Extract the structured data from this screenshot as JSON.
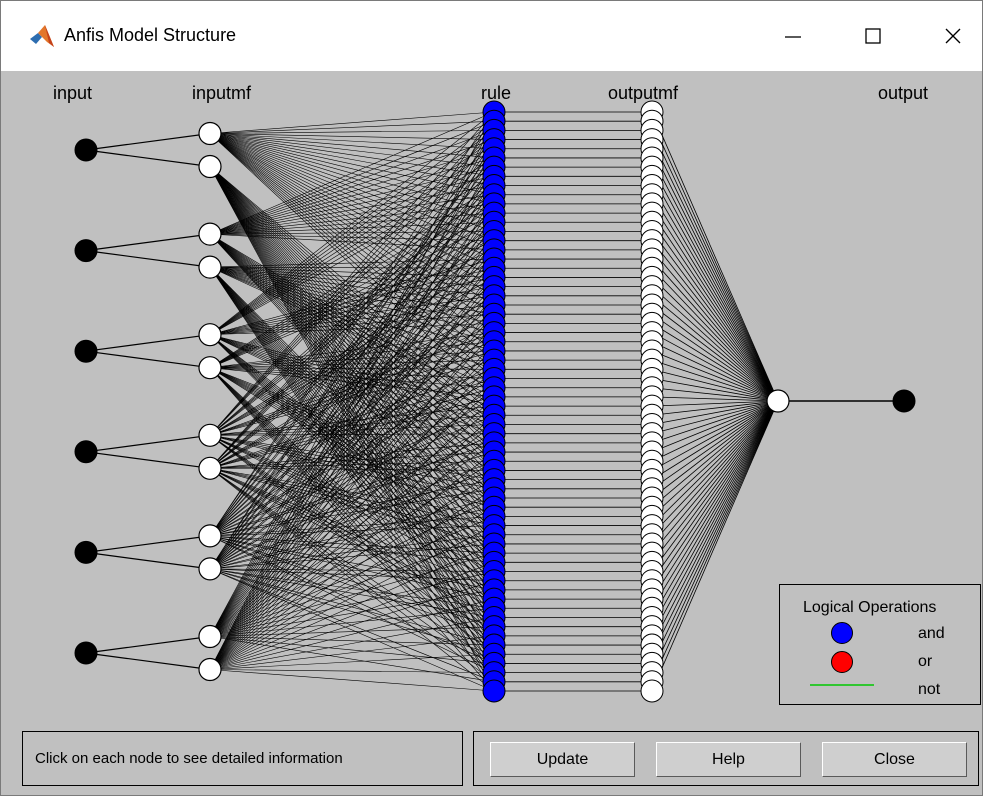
{
  "window": {
    "title": "Anfis Model Structure",
    "icon": "matlab-logo-icon",
    "controls": [
      "minimize-icon",
      "maximize-icon",
      "close-icon"
    ]
  },
  "diagram": {
    "column_labels": {
      "input": "input",
      "inputmf": "inputmf",
      "rule": "rule",
      "outputmf": "outputmf",
      "output": "output"
    },
    "counts": {
      "inputs": 6,
      "mfs_per_input": 2,
      "rules": 64,
      "outputmfs": 64,
      "outputs": 1
    },
    "colors": {
      "input_node": "#000000",
      "inputmf_node": "#ffffff",
      "rule_node_and": "#0000ff",
      "outputmf_node": "#ffffff",
      "output_node": "#000000",
      "edges": "#000000"
    }
  },
  "legend": {
    "title": "Logical Operations",
    "items": [
      {
        "label": "and",
        "color": "#0000ff"
      },
      {
        "label": "or",
        "color": "#ff0000"
      },
      {
        "label": "not",
        "color": "#00c800"
      }
    ]
  },
  "status": {
    "text": "Click on each node to see detailed information"
  },
  "buttons": {
    "update": "Update",
    "help": "Help",
    "close": "Close"
  }
}
